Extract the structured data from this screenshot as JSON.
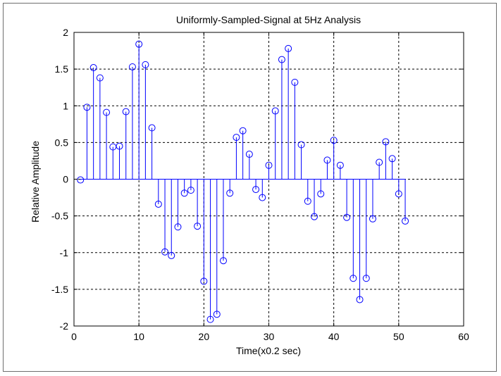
{
  "chart_data": {
    "type": "stem",
    "title": "Uniformly-Sampled-Signal at 5Hz Analysis",
    "xlabel": "Time(x0.2 sec)",
    "ylabel": "Relative Amplitude",
    "xlim": [
      0,
      60
    ],
    "ylim": [
      -2,
      2
    ],
    "xticks": [
      0,
      10,
      20,
      30,
      40,
      50,
      60
    ],
    "yticks": [
      2,
      1.5,
      1,
      0.5,
      0,
      -0.5,
      -1,
      -1.5,
      -2
    ],
    "grid": true,
    "series_color": "#0000ff",
    "x": [
      1,
      2,
      3,
      4,
      5,
      6,
      7,
      8,
      9,
      10,
      11,
      12,
      13,
      14,
      15,
      16,
      17,
      18,
      19,
      20,
      21,
      22,
      23,
      24,
      25,
      26,
      27,
      28,
      29,
      30,
      31,
      32,
      33,
      34,
      35,
      36,
      37,
      38,
      39,
      40,
      41,
      42,
      43,
      44,
      45,
      46,
      47,
      48,
      49,
      50,
      51
    ],
    "values": [
      -0.01,
      0.98,
      1.52,
      1.38,
      0.91,
      0.44,
      0.45,
      0.92,
      1.53,
      1.84,
      1.56,
      0.7,
      -0.34,
      -0.99,
      -1.04,
      -0.65,
      -0.19,
      -0.15,
      -0.64,
      -1.39,
      -1.91,
      -1.84,
      -1.11,
      -0.19,
      0.57,
      0.66,
      0.34,
      -0.14,
      -0.25,
      0.19,
      0.93,
      1.63,
      1.78,
      1.32,
      0.47,
      -0.3,
      -0.51,
      -0.2,
      0.26,
      0.53,
      0.19,
      -0.52,
      -1.35,
      -1.64,
      -1.35,
      -0.54,
      0.23,
      0.51,
      0.28,
      -0.2,
      -0.57
    ]
  }
}
